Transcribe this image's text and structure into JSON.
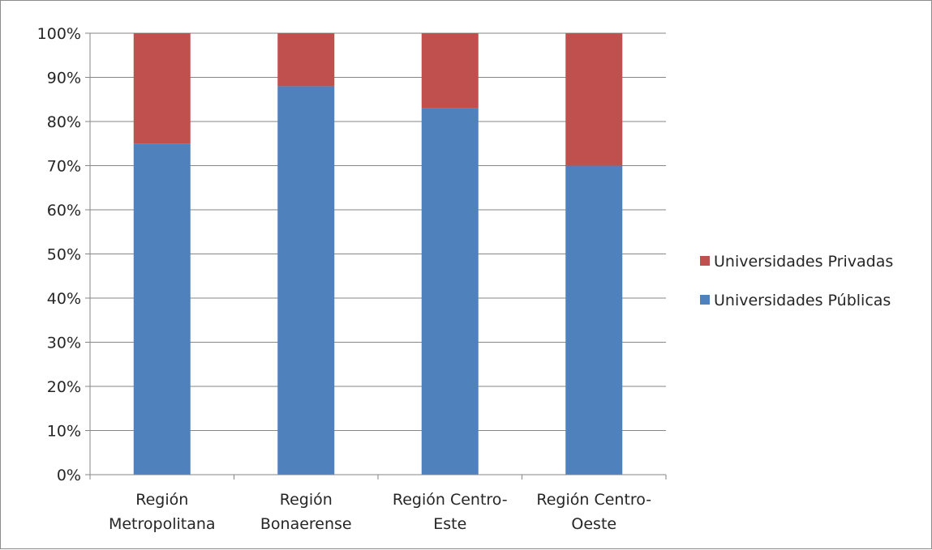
{
  "chart_data": {
    "type": "bar",
    "stacked": true,
    "categories": [
      [
        "Región",
        "Metropolitana"
      ],
      [
        "Región",
        "Bonaerense"
      ],
      [
        "Región Centro-",
        "Este"
      ],
      [
        "Región Centro-",
        "Oeste"
      ]
    ],
    "series": [
      {
        "name": "Universidades Públicas",
        "color": "#4f81bd",
        "values": [
          75,
          88,
          83,
          70
        ]
      },
      {
        "name": "Universidades Privadas",
        "color": "#c0504d",
        "values": [
          25,
          12,
          17,
          30
        ]
      }
    ],
    "yticks": [
      "0%",
      "10%",
      "20%",
      "30%",
      "40%",
      "50%",
      "60%",
      "70%",
      "80%",
      "90%",
      "100%"
    ],
    "ylim": [
      0,
      100
    ],
    "grid": true,
    "legend_position": "right"
  }
}
